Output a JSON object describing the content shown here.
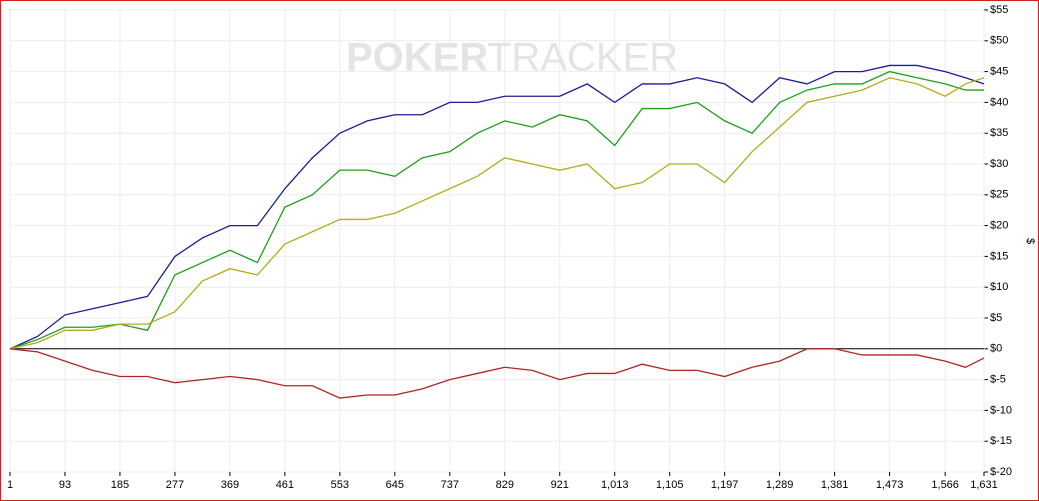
{
  "chart_data": {
    "type": "line",
    "watermark": [
      "POKER",
      "TRACKER"
    ],
    "y_label": "$",
    "x": [
      1,
      47,
      93,
      139,
      185,
      231,
      277,
      323,
      369,
      415,
      461,
      507,
      553,
      599,
      645,
      691,
      737,
      783,
      829,
      875,
      921,
      967,
      1013,
      1059,
      1105,
      1151,
      1197,
      1243,
      1289,
      1335,
      1381,
      1427,
      1473,
      1519,
      1566,
      1600,
      1631
    ],
    "series": [
      {
        "color": "#1c1c96",
        "values": [
          0,
          2,
          5.5,
          6.5,
          7.5,
          8.5,
          15,
          18,
          20,
          20,
          26,
          31,
          35,
          37,
          38,
          38,
          40,
          40,
          41,
          41,
          41,
          43,
          40,
          43,
          43,
          44,
          43,
          40,
          44,
          43,
          45,
          45,
          46,
          46,
          45,
          44,
          43
        ]
      },
      {
        "color": "#1ea01e",
        "values": [
          0,
          1.5,
          3.5,
          3.5,
          4,
          3,
          12,
          14,
          16,
          14,
          23,
          25,
          29,
          29,
          28,
          31,
          32,
          35,
          37,
          36,
          38,
          37,
          33,
          39,
          39,
          40,
          37,
          35,
          40,
          42,
          43,
          43,
          45,
          44,
          43,
          42,
          42
        ]
      },
      {
        "color": "#b3ac1e",
        "values": [
          0,
          1,
          3,
          3,
          4,
          4,
          6,
          11,
          13,
          12,
          17,
          19,
          21,
          21,
          22,
          24,
          26,
          28,
          31,
          30,
          29,
          30,
          26,
          27,
          30,
          30,
          27,
          32,
          36,
          40,
          41,
          42,
          44,
          43,
          41,
          43,
          44
        ]
      },
      {
        "color": "#b02424",
        "values": [
          0,
          -0.5,
          -2,
          -3.5,
          -4.5,
          -4.5,
          -5.5,
          -5,
          -4.5,
          -5,
          -6,
          -6,
          -8,
          -7.5,
          -7.5,
          -6.5,
          -5,
          -4,
          -3,
          -3.5,
          -5,
          -4,
          -4,
          -2.5,
          -3.5,
          -3.5,
          -4.5,
          -3,
          -2,
          0,
          0,
          -1,
          -1,
          -1,
          -2,
          -3,
          -1.5
        ]
      }
    ],
    "xlim": [
      1,
      1631
    ],
    "xticks": [
      1,
      93,
      185,
      277,
      369,
      461,
      553,
      645,
      737,
      829,
      921,
      {
        "value": 1013,
        "label": "1,013"
      },
      {
        "value": 1105,
        "label": "1,105"
      },
      {
        "value": 1197,
        "label": "1,197"
      },
      {
        "value": 1289,
        "label": "1,289"
      },
      {
        "value": 1381,
        "label": "1,381"
      },
      {
        "value": 1473,
        "label": "1,473"
      },
      {
        "value": 1566,
        "label": "1,566"
      },
      {
        "value": 1631,
        "label": "1,631"
      }
    ],
    "ylim": [
      -20,
      55
    ],
    "yticks": [
      {
        "value": -20,
        "label": "$-20"
      },
      {
        "value": -15,
        "label": "$-15"
      },
      {
        "value": -10,
        "label": "$-10"
      },
      {
        "value": -5,
        "label": "$-5"
      },
      {
        "value": 0,
        "label": "$0"
      },
      {
        "value": 5,
        "label": "$5"
      },
      {
        "value": 10,
        "label": "$10"
      },
      {
        "value": 15,
        "label": "$15"
      },
      {
        "value": 20,
        "label": "$20"
      },
      {
        "value": 25,
        "label": "$25"
      },
      {
        "value": 30,
        "label": "$30"
      },
      {
        "value": 35,
        "label": "$35"
      },
      {
        "value": 40,
        "label": "$40"
      },
      {
        "value": 45,
        "label": "$45"
      },
      {
        "value": 50,
        "label": "$50"
      },
      {
        "value": 55,
        "label": "$55"
      }
    ],
    "grid": true
  }
}
